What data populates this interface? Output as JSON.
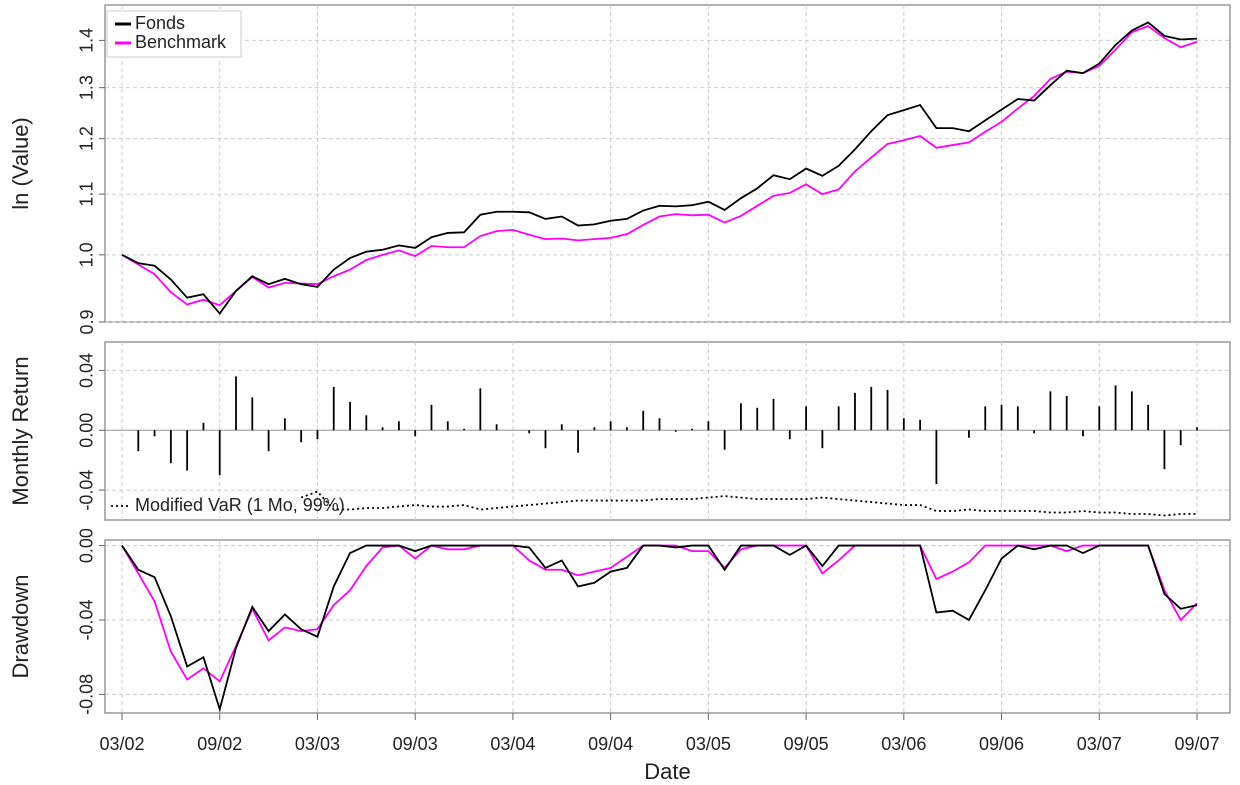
{
  "chart_data": [
    {
      "type": "line",
      "ylabel": "ln (Value)",
      "log_y": true,
      "grid": true,
      "legend": "top-left",
      "x": [
        "03/02",
        "04/02",
        "05/02",
        "06/02",
        "07/02",
        "08/02",
        "09/02",
        "10/02",
        "11/02",
        "12/02",
        "01/03",
        "02/03",
        "03/03",
        "04/03",
        "05/03",
        "06/03",
        "07/03",
        "08/03",
        "09/03",
        "10/03",
        "11/03",
        "12/03",
        "01/04",
        "02/04",
        "03/04",
        "04/04",
        "05/04",
        "06/04",
        "07/04",
        "08/04",
        "09/04",
        "10/04",
        "11/04",
        "12/04",
        "01/05",
        "02/05",
        "03/05",
        "04/05",
        "05/05",
        "06/05",
        "07/05",
        "08/05",
        "09/05",
        "10/05",
        "11/05",
        "12/05",
        "01/06",
        "02/06",
        "03/06",
        "04/06",
        "05/06",
        "06/06",
        "07/06",
        "08/06",
        "09/06",
        "10/06",
        "11/06",
        "12/06",
        "01/07",
        "02/07",
        "03/07",
        "04/07",
        "05/07",
        "06/07",
        "07/07",
        "08/07",
        "09/07"
      ],
      "ylim": [
        0.9,
        1.48
      ],
      "yticks": [
        0.9,
        {
          "value": 1,
          "label": "1.0"
        },
        1.1,
        1.2,
        1.3,
        1.4
      ],
      "series": [
        {
          "name": "Fonds",
          "color": "#000000",
          "values": [
            1.0,
            0.987,
            0.983,
            0.962,
            0.935,
            0.94,
            0.912,
            0.945,
            0.967,
            0.955,
            0.963,
            0.955,
            0.951,
            0.977,
            0.995,
            1.005,
            1.008,
            1.015,
            1.011,
            1.028,
            1.035,
            1.036,
            1.065,
            1.07,
            1.07,
            1.069,
            1.058,
            1.062,
            1.047,
            1.049,
            1.055,
            1.058,
            1.072,
            1.08,
            1.079,
            1.081,
            1.087,
            1.073,
            1.093,
            1.11,
            1.133,
            1.126,
            1.145,
            1.132,
            1.15,
            1.18,
            1.214,
            1.245,
            1.255,
            1.265,
            1.22,
            1.22,
            1.214,
            1.235,
            1.256,
            1.277,
            1.274,
            1.305,
            1.335,
            1.33,
            1.35,
            1.39,
            1.422,
            1.44,
            1.41,
            1.402,
            1.404
          ]
        },
        {
          "name": "Benchmark",
          "color": "#ff00ff",
          "values": [
            1.0,
            0.985,
            0.97,
            0.943,
            0.925,
            0.932,
            0.924,
            0.945,
            0.966,
            0.95,
            0.957,
            0.956,
            0.955,
            0.967,
            0.977,
            0.992,
            1.0,
            1.007,
            0.998,
            1.014,
            1.012,
            1.012,
            1.03,
            1.038,
            1.04,
            1.032,
            1.025,
            1.026,
            1.023,
            1.025,
            1.027,
            1.033,
            1.048,
            1.062,
            1.066,
            1.064,
            1.065,
            1.052,
            1.063,
            1.08,
            1.097,
            1.102,
            1.117,
            1.1,
            1.108,
            1.14,
            1.165,
            1.19,
            1.197,
            1.205,
            1.183,
            1.188,
            1.193,
            1.213,
            1.232,
            1.258,
            1.283,
            1.318,
            1.333,
            1.33,
            1.345,
            1.38,
            1.418,
            1.432,
            1.405,
            1.385,
            1.397
          ]
        }
      ]
    },
    {
      "type": "bar",
      "ylabel": "Monthly Return",
      "grid": true,
      "legend": "bottom-left",
      "color": "#000000",
      "x": [
        "03/02",
        "04/02",
        "05/02",
        "06/02",
        "07/02",
        "08/02",
        "09/02",
        "10/02",
        "11/02",
        "12/02",
        "01/03",
        "02/03",
        "03/03",
        "04/03",
        "05/03",
        "06/03",
        "07/03",
        "08/03",
        "09/03",
        "10/03",
        "11/03",
        "12/03",
        "01/04",
        "02/04",
        "03/04",
        "04/04",
        "05/04",
        "06/04",
        "07/04",
        "08/04",
        "09/04",
        "10/04",
        "11/04",
        "12/04",
        "01/05",
        "02/05",
        "03/05",
        "04/05",
        "05/05",
        "06/05",
        "07/05",
        "08/05",
        "09/05",
        "10/05",
        "11/05",
        "12/05",
        "01/06",
        "02/06",
        "03/06",
        "04/06",
        "05/06",
        "06/06",
        "07/06",
        "08/06",
        "09/06",
        "10/06",
        "11/06",
        "12/06",
        "01/07",
        "02/07",
        "03/07",
        "04/07",
        "05/07",
        "06/07",
        "07/07",
        "08/07",
        "09/07"
      ],
      "ylim": [
        -0.06,
        0.059
      ],
      "yticks": [
        {
          "value": -0.04,
          "label": "-0.04"
        },
        {
          "value": 0,
          "label": "0.00"
        },
        {
          "value": 0.04,
          "label": "0.04"
        }
      ],
      "values": [
        null,
        -0.014,
        -0.004,
        -0.022,
        -0.027,
        0.005,
        -0.03,
        0.036,
        0.022,
        -0.014,
        0.008,
        -0.008,
        -0.006,
        0.029,
        0.019,
        0.01,
        0.002,
        0.006,
        -0.004,
        0.017,
        0.006,
        0.001,
        0.028,
        0.004,
        0,
        -0.002,
        -0.012,
        0.004,
        -0.015,
        0.002,
        0.006,
        0.002,
        0.013,
        0.008,
        -0.001,
        0.001,
        0.006,
        -0.013,
        0.018,
        0.015,
        0.021,
        -0.006,
        0.016,
        -0.012,
        0.016,
        0.025,
        0.029,
        0.027,
        0.008,
        0.007,
        -0.036,
        0,
        -0.005,
        0.016,
        0.017,
        0.016,
        -0.002,
        0.026,
        0.023,
        -0.004,
        0.016,
        0.03,
        0.026,
        0.017,
        -0.026,
        -0.01,
        0.002
      ],
      "var_line": {
        "name": "Modified VaR (1 Mo, 99%)",
        "color": "#000000",
        "values": [
          null,
          null,
          null,
          null,
          null,
          null,
          null,
          null,
          null,
          null,
          null,
          -0.045,
          -0.041,
          -0.053,
          -0.053,
          -0.052,
          -0.052,
          -0.051,
          -0.05,
          -0.051,
          -0.051,
          -0.05,
          -0.053,
          -0.052,
          -0.051,
          -0.05,
          -0.049,
          -0.048,
          -0.047,
          -0.047,
          -0.047,
          -0.047,
          -0.047,
          -0.046,
          -0.046,
          -0.046,
          -0.045,
          -0.044,
          -0.045,
          -0.046,
          -0.046,
          -0.046,
          -0.046,
          -0.045,
          -0.046,
          -0.047,
          -0.048,
          -0.049,
          -0.05,
          -0.05,
          -0.054,
          -0.054,
          -0.053,
          -0.054,
          -0.054,
          -0.054,
          -0.054,
          -0.055,
          -0.055,
          -0.054,
          -0.055,
          -0.055,
          -0.056,
          -0.056,
          -0.057,
          -0.056,
          -0.056
        ]
      }
    },
    {
      "type": "line",
      "ylabel": "Drawdown",
      "xlabel": "Date",
      "grid": true,
      "x": [
        "03/02",
        "04/02",
        "05/02",
        "06/02",
        "07/02",
        "08/02",
        "09/02",
        "10/02",
        "11/02",
        "12/02",
        "01/03",
        "02/03",
        "03/03",
        "04/03",
        "05/03",
        "06/03",
        "07/03",
        "08/03",
        "09/03",
        "10/03",
        "11/03",
        "12/03",
        "01/04",
        "02/04",
        "03/04",
        "04/04",
        "05/04",
        "06/04",
        "07/04",
        "08/04",
        "09/04",
        "10/04",
        "11/04",
        "12/04",
        "01/05",
        "02/05",
        "03/05",
        "04/05",
        "05/05",
        "06/05",
        "07/05",
        "08/05",
        "09/05",
        "10/05",
        "11/05",
        "12/05",
        "01/06",
        "02/06",
        "03/06",
        "04/06",
        "05/06",
        "06/06",
        "07/06",
        "08/06",
        "09/06",
        "10/06",
        "11/06",
        "12/06",
        "01/07",
        "02/07",
        "03/07",
        "04/07",
        "05/07",
        "06/07",
        "07/07",
        "08/07",
        "09/07"
      ],
      "xticks": [
        "03/02",
        "09/02",
        "03/03",
        "09/03",
        "03/04",
        "09/04",
        "03/05",
        "09/05",
        "03/06",
        "09/06",
        "03/07",
        "09/07"
      ],
      "ylim": [
        -0.09,
        0.003
      ],
      "yticks": [
        {
          "value": -0.08,
          "label": "-0.08"
        },
        {
          "value": -0.04,
          "label": "-0.04"
        },
        {
          "value": 0,
          "label": "0.00"
        }
      ],
      "series": [
        {
          "name": "Fonds",
          "color": "#000000",
          "values": [
            0,
            -0.013,
            -0.017,
            -0.038,
            -0.065,
            -0.06,
            -0.088,
            -0.055,
            -0.033,
            -0.046,
            -0.037,
            -0.045,
            -0.049,
            -0.022,
            -0.004,
            0,
            0,
            0,
            -0.003,
            0,
            0,
            0,
            0,
            0,
            0,
            -0.001,
            -0.012,
            -0.008,
            -0.022,
            -0.02,
            -0.014,
            -0.012,
            0,
            0,
            -0.001,
            0,
            0,
            -0.013,
            0,
            0,
            0,
            -0.005,
            0,
            -0.011,
            0,
            0,
            0,
            0,
            0,
            0,
            -0.036,
            -0.035,
            -0.04,
            -0.024,
            -0.007,
            0,
            -0.002,
            0,
            0,
            -0.004,
            0,
            0,
            0,
            0,
            -0.026,
            -0.034,
            -0.032
          ]
        },
        {
          "name": "Benchmark",
          "color": "#ff00ff",
          "values": [
            0,
            -0.015,
            -0.03,
            -0.057,
            -0.072,
            -0.066,
            -0.073,
            -0.054,
            -0.034,
            -0.051,
            -0.044,
            -0.046,
            -0.045,
            -0.032,
            -0.024,
            -0.011,
            -0.001,
            0,
            -0.007,
            0,
            -0.002,
            -0.002,
            0,
            0,
            0,
            -0.008,
            -0.013,
            -0.013,
            -0.016,
            -0.014,
            -0.012,
            -0.006,
            0,
            0,
            0,
            -0.003,
            -0.003,
            -0.012,
            -0.002,
            0,
            0,
            0,
            0,
            -0.015,
            -0.008,
            0,
            0,
            0,
            0,
            0,
            -0.018,
            -0.014,
            -0.009,
            0,
            0,
            0,
            0,
            0,
            -0.003,
            0,
            0,
            0,
            0,
            0,
            -0.024,
            -0.04,
            -0.031
          ]
        }
      ]
    }
  ]
}
